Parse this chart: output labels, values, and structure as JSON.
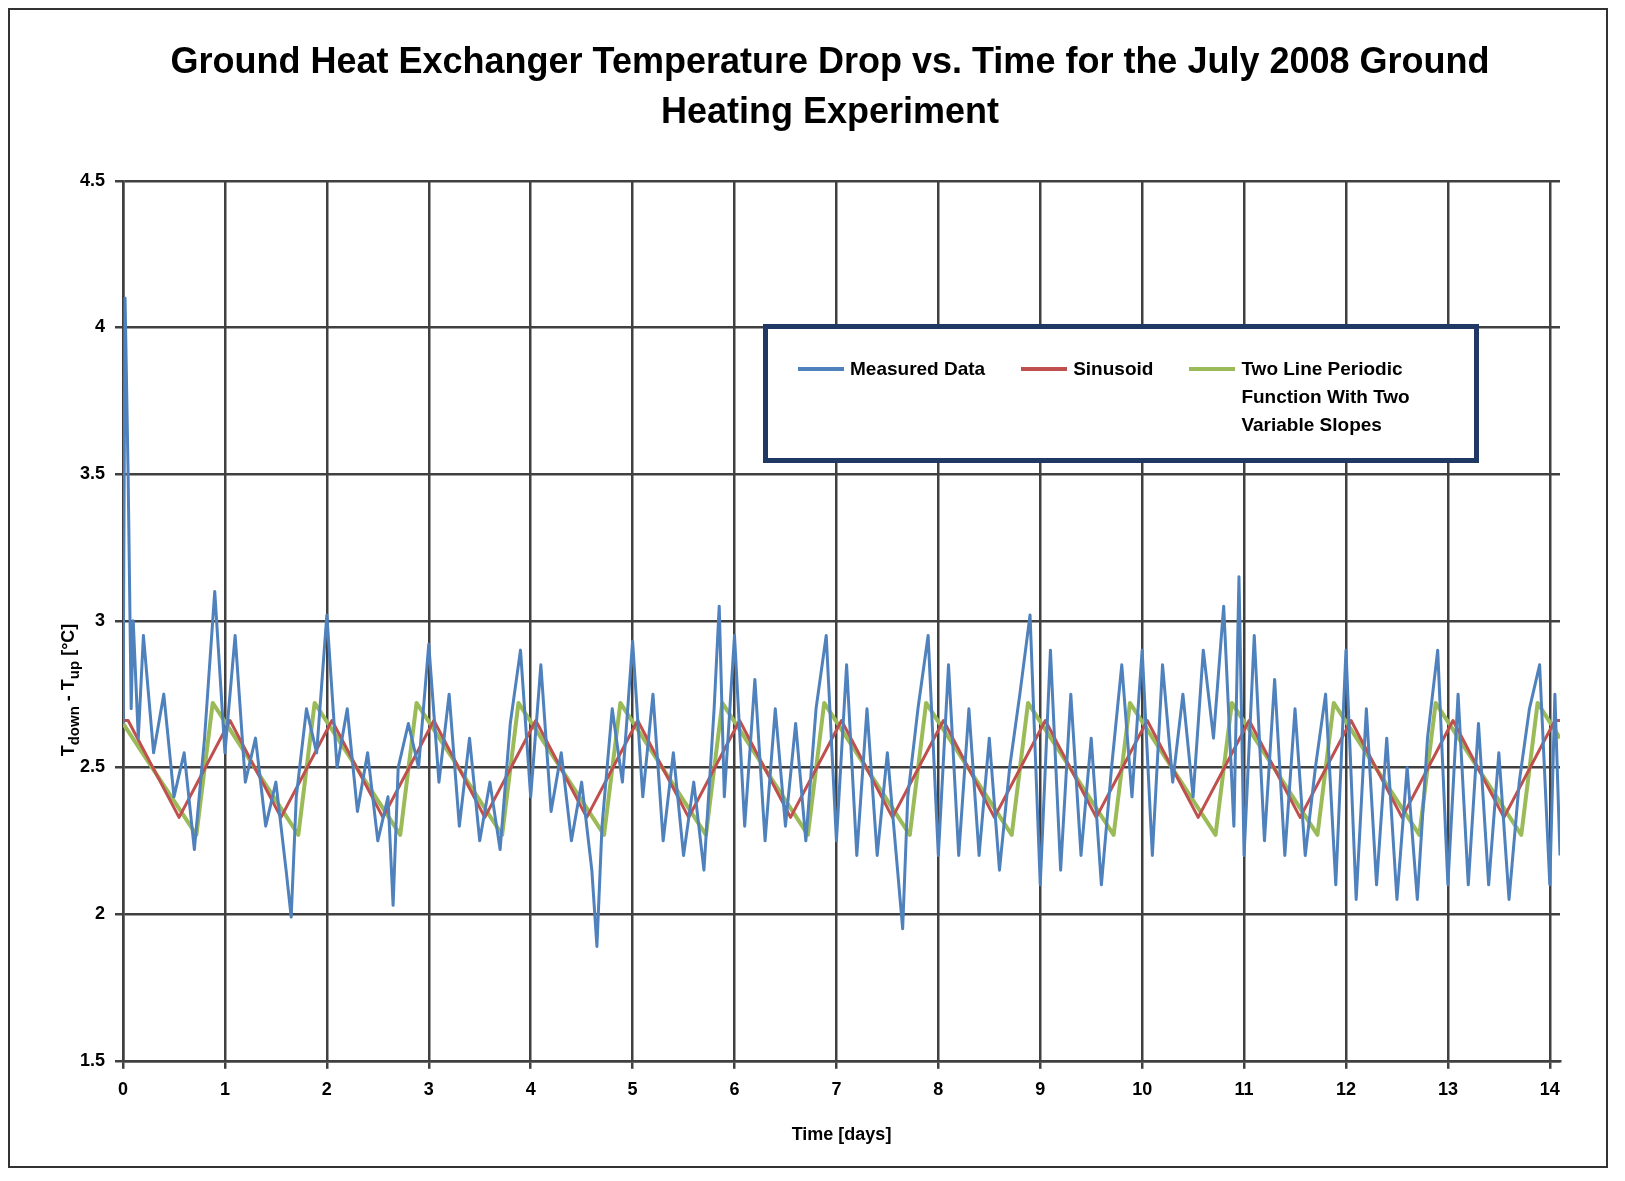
{
  "chart_data": {
    "type": "line",
    "title": "Ground Heat Exchanger Temperature Drop vs. Time for the July 2008 Ground Heating Experiment",
    "xlabel": "Time [days]",
    "ylabel": "T$_{down}$ - T$_{up}$ [°C]",
    "xlim": [
      0,
      14.1
    ],
    "xticks": [
      0,
      1,
      2,
      3,
      4,
      5,
      6,
      7,
      8,
      9,
      10,
      11,
      12,
      13,
      14
    ],
    "ylim": [
      1.5,
      4.5
    ],
    "yticks": [
      1.5,
      2,
      2.5,
      3,
      3.5,
      4,
      4.5
    ],
    "grid": true,
    "legend": "top right",
    "marker": "none",
    "line_style": "solid",
    "series": [
      {
        "name": "Measured Data",
        "color": "#4f81bd",
        "x": [
          0,
          0.02,
          0.05,
          0.08,
          0.1,
          0.15,
          0.2,
          0.3,
          0.4,
          0.5,
          0.6,
          0.7,
          0.8,
          0.9,
          1.0,
          1.1,
          1.2,
          1.3,
          1.4,
          1.5,
          1.6,
          1.65,
          1.7,
          1.8,
          1.9,
          2.0,
          2.1,
          2.2,
          2.3,
          2.4,
          2.5,
          2.6,
          2.65,
          2.7,
          2.8,
          2.9,
          3.0,
          3.1,
          3.2,
          3.3,
          3.4,
          3.5,
          3.6,
          3.7,
          3.8,
          3.9,
          4.0,
          4.1,
          4.2,
          4.3,
          4.4,
          4.5,
          4.6,
          4.65,
          4.7,
          4.8,
          4.9,
          5.0,
          5.1,
          5.2,
          5.3,
          5.4,
          5.5,
          5.6,
          5.7,
          5.8,
          5.85,
          5.9,
          6.0,
          6.1,
          6.2,
          6.3,
          6.4,
          6.5,
          6.6,
          6.7,
          6.8,
          6.9,
          7.0,
          7.1,
          7.2,
          7.3,
          7.4,
          7.5,
          7.6,
          7.65,
          7.7,
          7.8,
          7.9,
          8.0,
          8.1,
          8.2,
          8.3,
          8.4,
          8.5,
          8.6,
          8.7,
          8.8,
          8.9,
          9.0,
          9.1,
          9.2,
          9.3,
          9.4,
          9.5,
          9.6,
          9.7,
          9.8,
          9.9,
          10.0,
          10.1,
          10.2,
          10.3,
          10.4,
          10.5,
          10.6,
          10.7,
          10.8,
          10.9,
          10.95,
          11.0,
          11.1,
          11.2,
          11.3,
          11.4,
          11.5,
          11.6,
          11.7,
          11.8,
          11.9,
          12.0,
          12.1,
          12.2,
          12.3,
          12.4,
          12.5,
          12.6,
          12.7,
          12.8,
          12.9,
          13.0,
          13.1,
          13.2,
          13.3,
          13.4,
          13.5,
          13.6,
          13.7,
          13.8,
          13.9,
          14.0,
          14.05,
          14.1
        ],
        "values": [
          2.65,
          4.1,
          3.5,
          2.7,
          3.0,
          2.6,
          2.95,
          2.55,
          2.75,
          2.4,
          2.55,
          2.22,
          2.6,
          3.1,
          2.55,
          2.95,
          2.45,
          2.6,
          2.3,
          2.45,
          2.15,
          1.99,
          2.4,
          2.7,
          2.55,
          3.02,
          2.5,
          2.7,
          2.35,
          2.55,
          2.25,
          2.4,
          2.03,
          2.5,
          2.65,
          2.5,
          2.92,
          2.45,
          2.75,
          2.3,
          2.6,
          2.25,
          2.45,
          2.22,
          2.65,
          2.9,
          2.4,
          2.85,
          2.35,
          2.55,
          2.25,
          2.45,
          2.15,
          1.89,
          2.3,
          2.7,
          2.45,
          2.93,
          2.4,
          2.75,
          2.25,
          2.55,
          2.2,
          2.45,
          2.15,
          2.7,
          3.05,
          2.4,
          2.95,
          2.3,
          2.8,
          2.25,
          2.7,
          2.3,
          2.65,
          2.25,
          2.7,
          2.95,
          2.25,
          2.85,
          2.2,
          2.7,
          2.2,
          2.55,
          2.15,
          1.95,
          2.4,
          2.7,
          2.95,
          2.2,
          2.85,
          2.2,
          2.7,
          2.2,
          2.6,
          2.15,
          2.5,
          2.75,
          3.02,
          2.1,
          2.9,
          2.15,
          2.75,
          2.2,
          2.6,
          2.1,
          2.5,
          2.85,
          2.4,
          2.9,
          2.2,
          2.85,
          2.45,
          2.75,
          2.4,
          2.9,
          2.6,
          3.05,
          2.3,
          3.15,
          2.2,
          2.95,
          2.25,
          2.8,
          2.2,
          2.7,
          2.2,
          2.5,
          2.75,
          2.1,
          2.9,
          2.05,
          2.7,
          2.1,
          2.6,
          2.05,
          2.5,
          2.05,
          2.6,
          2.9,
          2.1,
          2.75,
          2.1,
          2.65,
          2.1,
          2.55,
          2.05,
          2.45,
          2.7,
          2.85,
          2.1,
          2.75,
          2.2
        ]
      },
      {
        "name": "Sinusoid",
        "color": "#c0504d",
        "x": [
          0,
          0.05,
          0.3,
          0.55,
          0.8,
          1.05,
          1.3,
          1.55,
          1.8,
          2.05,
          2.3,
          2.55,
          2.8,
          3.05,
          3.3,
          3.55,
          3.8,
          4.05,
          4.3,
          4.55,
          4.8,
          5.05,
          5.3,
          5.55,
          5.8,
          6.05,
          6.3,
          6.55,
          6.8,
          7.05,
          7.3,
          7.55,
          7.8,
          8.05,
          8.3,
          8.55,
          8.8,
          9.05,
          9.3,
          9.55,
          9.8,
          10.05,
          10.3,
          10.55,
          10.8,
          11.05,
          11.3,
          11.55,
          11.8,
          12.05,
          12.3,
          12.55,
          12.8,
          13.05,
          13.3,
          13.55,
          13.8,
          14.05,
          14.1
        ],
        "values": [
          2.66,
          2.66,
          2.495,
          2.33,
          2.495,
          2.66,
          2.495,
          2.33,
          2.495,
          2.66,
          2.495,
          2.33,
          2.495,
          2.66,
          2.495,
          2.33,
          2.495,
          2.66,
          2.495,
          2.33,
          2.495,
          2.66,
          2.495,
          2.33,
          2.495,
          2.66,
          2.495,
          2.33,
          2.495,
          2.66,
          2.495,
          2.33,
          2.495,
          2.66,
          2.495,
          2.33,
          2.495,
          2.66,
          2.495,
          2.33,
          2.495,
          2.66,
          2.495,
          2.33,
          2.495,
          2.66,
          2.495,
          2.33,
          2.495,
          2.66,
          2.495,
          2.33,
          2.495,
          2.66,
          2.495,
          2.33,
          2.495,
          2.66,
          2.66
        ]
      },
      {
        "name": "Two Line Periodic Function With Two Variable Slopes",
        "color": "#9bbb59",
        "x": [
          0,
          0.72,
          0.88,
          1.72,
          1.88,
          2.72,
          2.88,
          3.72,
          3.88,
          4.72,
          4.88,
          5.72,
          5.88,
          6.72,
          6.88,
          7.72,
          7.88,
          8.72,
          8.88,
          9.72,
          9.88,
          10.72,
          10.88,
          11.72,
          11.88,
          12.72,
          12.88,
          13.72,
          13.88,
          14.1
        ],
        "values": [
          2.65,
          2.27,
          2.72,
          2.27,
          2.72,
          2.27,
          2.72,
          2.27,
          2.72,
          2.27,
          2.72,
          2.27,
          2.72,
          2.27,
          2.72,
          2.27,
          2.72,
          2.27,
          2.72,
          2.27,
          2.72,
          2.27,
          2.72,
          2.27,
          2.72,
          2.27,
          2.72,
          2.27,
          2.72,
          2.6
        ]
      }
    ]
  }
}
